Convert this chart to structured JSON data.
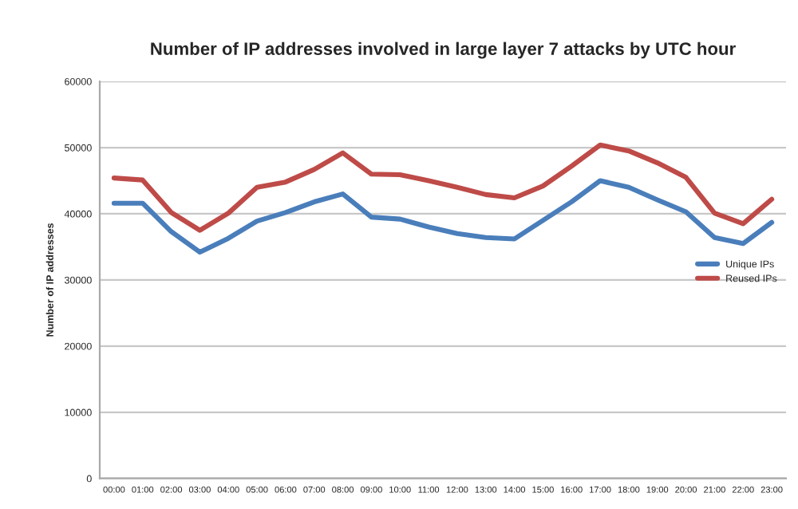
{
  "chart_data": {
    "type": "line",
    "title": "Number of IP addresses involved in large layer 7 attacks by UTC hour",
    "ylabel": "Number of IP addresses",
    "categories": [
      "00:00",
      "01:00",
      "02:00",
      "03:00",
      "04:00",
      "05:00",
      "06:00",
      "07:00",
      "08:00",
      "09:00",
      "10:00",
      "11:00",
      "12:00",
      "13:00",
      "14:00",
      "15:00",
      "16:00",
      "17:00",
      "18:00",
      "19:00",
      "20:00",
      "21:00",
      "22:00",
      "23:00"
    ],
    "series": [
      {
        "name": "Unique IPs",
        "color": "#4a7ebb",
        "values": [
          41600,
          41600,
          37300,
          34200,
          36300,
          38900,
          40200,
          41800,
          43000,
          39500,
          39200,
          38000,
          37000,
          36400,
          36200,
          39000,
          41800,
          45000,
          44000,
          42100,
          40300,
          36400,
          35500,
          38700
        ]
      },
      {
        "name": "Reused IPs",
        "color": "#be4b48",
        "values": [
          45400,
          45100,
          40200,
          37500,
          40100,
          44000,
          44800,
          46700,
          49200,
          46000,
          45900,
          45000,
          44000,
          42900,
          42400,
          44200,
          47200,
          50400,
          49500,
          47700,
          45500,
          40100,
          38500,
          42200
        ]
      }
    ],
    "ylim": [
      0,
      60000
    ],
    "yticks": [
      0,
      10000,
      20000,
      30000,
      40000,
      50000,
      60000
    ],
    "grid": "y",
    "legend": "right",
    "marker": "none",
    "line_style": "solid"
  }
}
